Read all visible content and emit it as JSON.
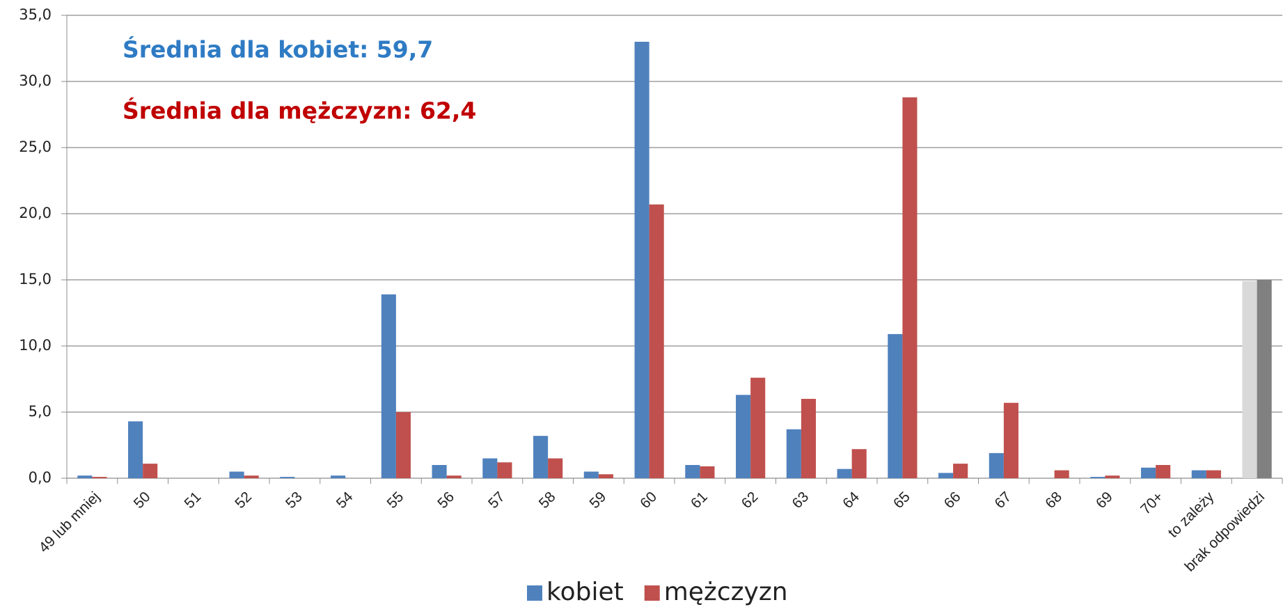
{
  "chart_data": {
    "type": "bar",
    "annotations": [
      {
        "text": "Średnia dla kobiet: 59,7",
        "color": "#2e7bc4"
      },
      {
        "text": "Średnia dla mężczyzn: 62,4",
        "color": "#c00000"
      }
    ],
    "categories": [
      "49 lub mniej",
      "50",
      "51",
      "52",
      "53",
      "54",
      "55",
      "56",
      "57",
      "58",
      "59",
      "60",
      "61",
      "62",
      "63",
      "64",
      "65",
      "66",
      "67",
      "68",
      "69",
      "70+",
      "to zależy",
      "brak odpowiedzi"
    ],
    "series": [
      {
        "name": "kobiet",
        "color": "#4f81bd",
        "colors": [
          "#4f81bd",
          "#4f81bd",
          "#4f81bd",
          "#4f81bd",
          "#4f81bd",
          "#4f81bd",
          "#4f81bd",
          "#4f81bd",
          "#4f81bd",
          "#4f81bd",
          "#4f81bd",
          "#4f81bd",
          "#4f81bd",
          "#4f81bd",
          "#4f81bd",
          "#4f81bd",
          "#4f81bd",
          "#4f81bd",
          "#4f81bd",
          "#4f81bd",
          "#4f81bd",
          "#4f81bd",
          "#4f81bd",
          "#d9d9d9"
        ],
        "values": [
          0.2,
          4.3,
          0,
          0.5,
          0.1,
          0.2,
          13.9,
          1.0,
          1.5,
          3.2,
          0.5,
          33.0,
          1.0,
          6.3,
          3.7,
          0.7,
          10.9,
          0.4,
          1.9,
          0.0,
          0.1,
          0.8,
          0.6,
          14.9
        ]
      },
      {
        "name": "mężczyzn",
        "color": "#c0504d",
        "colors": [
          "#c0504d",
          "#c0504d",
          "#c0504d",
          "#c0504d",
          "#c0504d",
          "#c0504d",
          "#c0504d",
          "#c0504d",
          "#c0504d",
          "#c0504d",
          "#c0504d",
          "#c0504d",
          "#c0504d",
          "#c0504d",
          "#c0504d",
          "#c0504d",
          "#c0504d",
          "#c0504d",
          "#c0504d",
          "#c0504d",
          "#c0504d",
          "#c0504d",
          "#c0504d",
          "#808080"
        ],
        "values": [
          0.1,
          1.1,
          0,
          0.2,
          0,
          0,
          5.0,
          0.2,
          1.2,
          1.5,
          0.3,
          20.7,
          0.9,
          7.6,
          6.0,
          2.2,
          28.8,
          1.1,
          5.7,
          0.6,
          0.2,
          1.0,
          0.6,
          15.0
        ]
      }
    ],
    "ylim": [
      0,
      35
    ],
    "yticks": [
      {
        "value": 0,
        "label": "0,0"
      },
      {
        "value": 5,
        "label": "5,0"
      },
      {
        "value": 10,
        "label": "10,0"
      },
      {
        "value": 15,
        "label": "15,0"
      },
      {
        "value": 20,
        "label": "20,0"
      },
      {
        "value": 25,
        "label": "25,0"
      },
      {
        "value": 30,
        "label": "30,0"
      },
      {
        "value": 35,
        "label": "35,0"
      }
    ],
    "grid": true,
    "legend": "bottom"
  }
}
